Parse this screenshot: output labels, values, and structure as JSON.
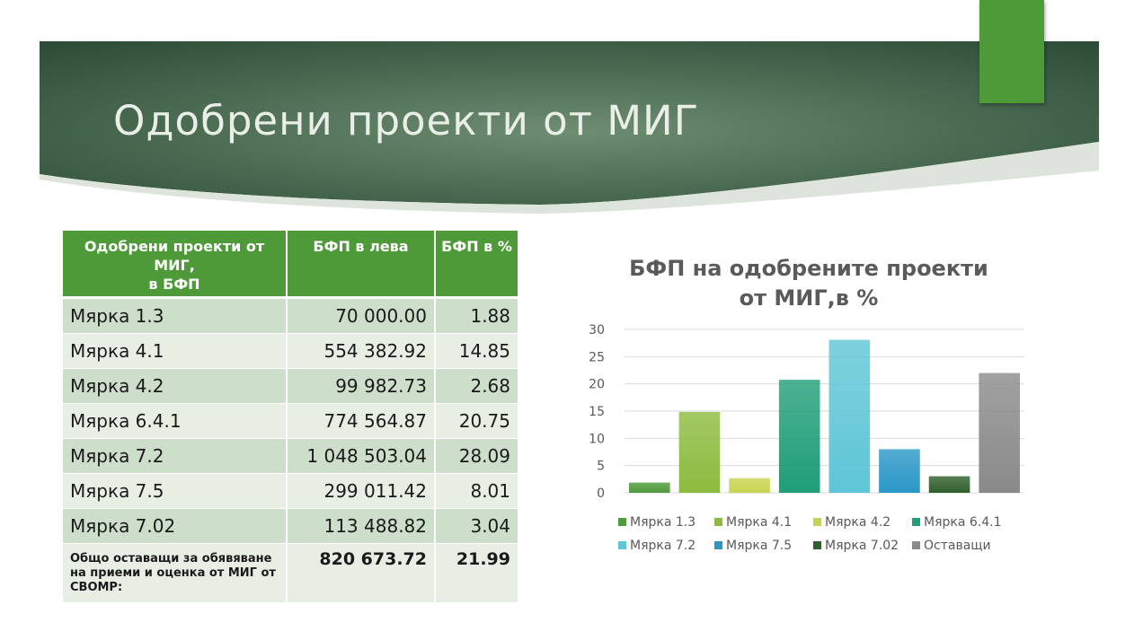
{
  "title": "Одобрени проекти от МИГ",
  "table": {
    "headers": [
      "Одобрени проекти от МИГ,\nв БФП",
      "БФП в лева",
      "БФП в %"
    ],
    "rows": [
      {
        "label": "Мярка 1.3",
        "amount": "70 000.00",
        "percent": "1.88"
      },
      {
        "label": "Мярка 4.1",
        "amount": "554 382.92",
        "percent": "14.85"
      },
      {
        "label": "Мярка 4.2",
        "amount": "99 982.73",
        "percent": "2.68"
      },
      {
        "label": "Мярка 6.4.1",
        "amount": "774 564.87",
        "percent": "20.75"
      },
      {
        "label": "Мярка 7.2",
        "amount": "1 048 503.04",
        "percent": "28.09"
      },
      {
        "label": "Мярка 7.5",
        "amount": "299 011.42",
        "percent": "8.01"
      },
      {
        "label": "Мярка 7.02",
        "amount": "113 488.82",
        "percent": "3.04"
      }
    ],
    "total": {
      "label": "Общо оставащи за обявяване на приеми и оценка от МИГ от СВОМР:",
      "amount": "820 673.72",
      "percent": "21.99"
    }
  },
  "colors": {
    "accent": "#4f9a38",
    "banner": "#35573f"
  },
  "chart_data": {
    "type": "bar",
    "title": "БФП на одобрените проекти от МИГ,в %",
    "categories": [
      "Мярка 1.3",
      "Мярка 4.1",
      "Мярка 4.2",
      "Мярка 6.4.1",
      "Мярка 7.2",
      "Мярка 7.5",
      "Мярка 7.02",
      "Оставащи"
    ],
    "values": [
      1.88,
      14.85,
      2.68,
      20.75,
      28.09,
      8.01,
      3.04,
      21.99
    ],
    "colors": [
      "#4e9a3c",
      "#8cbb3e",
      "#c7d44e",
      "#1f9e77",
      "#5ec6d6",
      "#2a97c7",
      "#2f5f2c",
      "#8a8a8a"
    ],
    "ylim": [
      0,
      30
    ],
    "yticks": [
      0,
      5,
      10,
      15,
      20,
      25,
      30
    ],
    "grid": true,
    "legend": "bottom"
  }
}
